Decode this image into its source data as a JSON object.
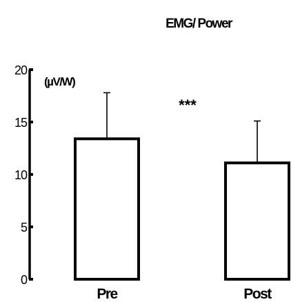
{
  "chart_data": {
    "type": "bar",
    "title": "EMG/ Power",
    "ylabel": "(µV/W)",
    "xlabel": "",
    "categories": [
      "Pre",
      "Post"
    ],
    "values": [
      13.4,
      11.1
    ],
    "error_upper": [
      17.8,
      15.1
    ],
    "ylim": [
      0,
      20
    ],
    "yticks": [
      0,
      5,
      10,
      15,
      20
    ],
    "annotation": "***",
    "grid": false,
    "bar_fill": "#ffffff",
    "stroke_color": "#000000"
  }
}
